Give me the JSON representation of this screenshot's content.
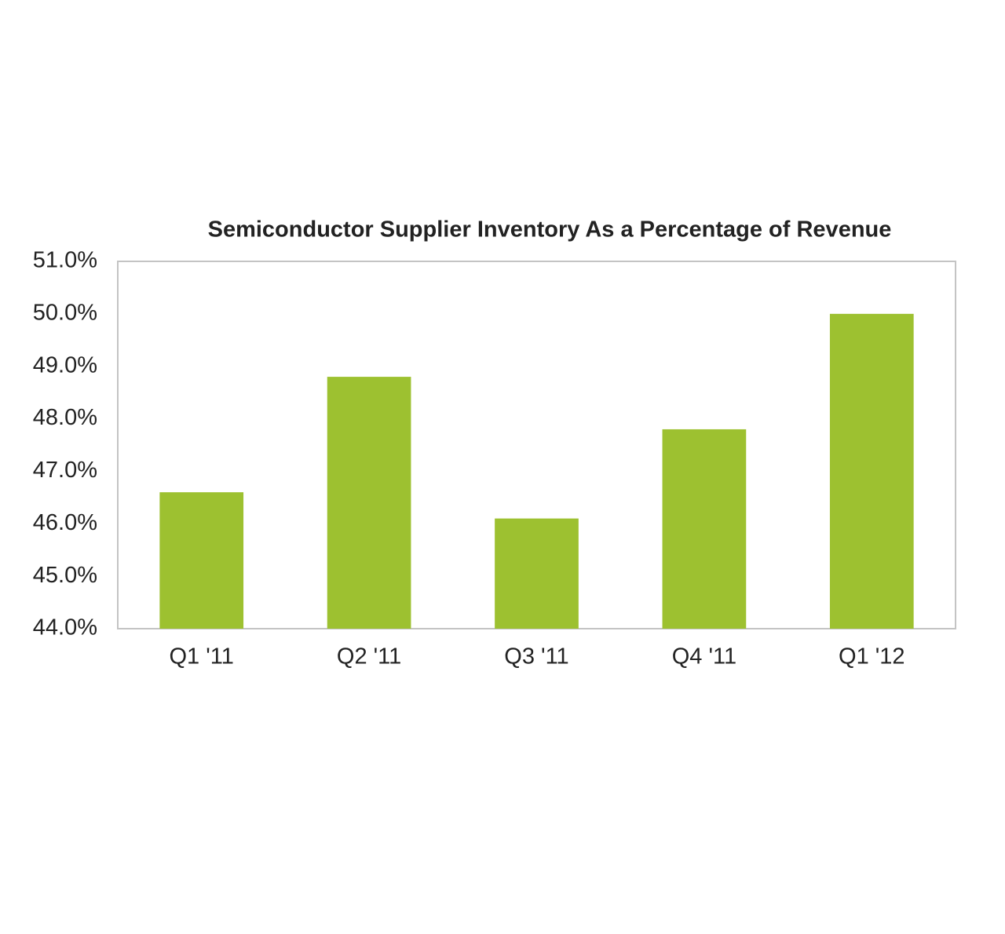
{
  "chart_data": {
    "type": "bar",
    "title": "Semiconductor Supplier Inventory As a Percentage of Revenue",
    "categories": [
      "Q1 '11",
      "Q2 '11",
      "Q3 '11",
      "Q4 '11",
      "Q1 '12"
    ],
    "values": [
      46.6,
      48.8,
      46.1,
      47.8,
      50.0
    ],
    "color": "#9dc130",
    "ylim": [
      44,
      51
    ],
    "yticks": [
      {
        "value": 44,
        "label": "44.0%"
      },
      {
        "value": 45,
        "label": "45.0%"
      },
      {
        "value": 46,
        "label": "46.0%"
      },
      {
        "value": 47,
        "label": "47.0%"
      },
      {
        "value": 48,
        "label": "48.0%"
      },
      {
        "value": 49,
        "label": "49.0%"
      },
      {
        "value": 50,
        "label": "50.0%"
      },
      {
        "value": 51,
        "label": "51.0%"
      }
    ],
    "grid": false
  }
}
